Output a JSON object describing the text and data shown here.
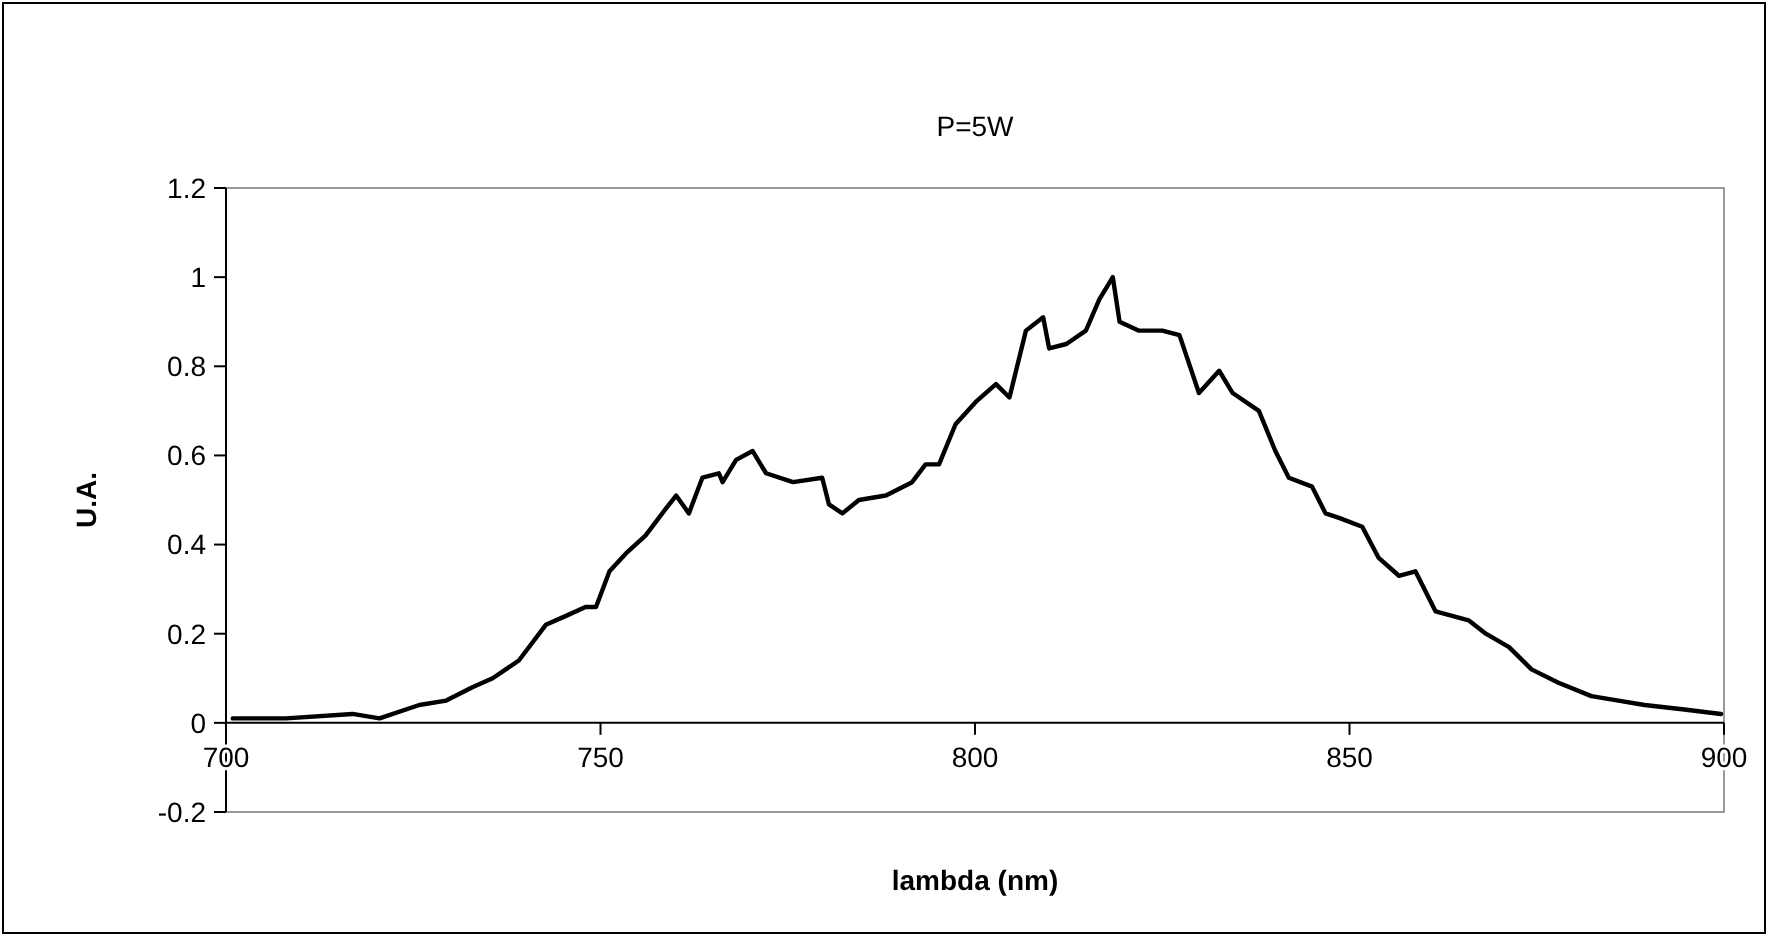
{
  "chart_data": {
    "type": "line",
    "title": "P=5W",
    "xlabel": "lambda (nm)",
    "ylabel": "U.A.",
    "x": [
      700.9,
      708,
      716.9,
      720.5,
      725.8,
      729.4,
      732.9,
      735.6,
      739.1,
      742.7,
      745.4,
      748,
      749.4,
      751.2,
      753.4,
      756,
      758.7,
      760.1,
      761.8,
      763.6,
      765.8,
      766.3,
      768.1,
      770.3,
      772.1,
      775.7,
      779.6,
      780.5,
      782.3,
      784.5,
      788.1,
      791.6,
      793.4,
      795.2,
      797.4,
      800.1,
      802.8,
      804.6,
      806.8,
      809.1,
      809.9,
      812.2,
      814.8,
      816.6,
      818.4,
      819.3,
      821.9,
      825,
      827.3,
      829.9,
      832.6,
      834.4,
      837.9,
      840.1,
      841.9,
      845,
      846.8,
      848.6,
      851.7,
      853.9,
      856.6,
      858.8,
      861.5,
      865.9,
      868.2,
      871.3,
      874.3,
      877.9,
      882.3,
      885.9,
      889.4,
      894.7,
      899.6
    ],
    "series": [
      {
        "color": "#000000",
        "values": [
          0.01,
          0.01,
          0.02,
          0.01,
          0.04,
          0.05,
          0.08,
          0.1,
          0.14,
          0.22,
          0.24,
          0.26,
          0.26,
          0.34,
          0.38,
          0.42,
          0.48,
          0.51,
          0.47,
          0.55,
          0.56,
          0.54,
          0.59,
          0.61,
          0.56,
          0.54,
          0.55,
          0.49,
          0.47,
          0.5,
          0.51,
          0.54,
          0.58,
          0.58,
          0.67,
          0.72,
          0.76,
          0.73,
          0.88,
          0.91,
          0.84,
          0.85,
          0.88,
          0.95,
          1.0,
          0.9,
          0.88,
          0.88,
          0.87,
          0.74,
          0.79,
          0.74,
          0.7,
          0.61,
          0.55,
          0.53,
          0.47,
          0.46,
          0.44,
          0.37,
          0.33,
          0.34,
          0.25,
          0.23,
          0.2,
          0.17,
          0.12,
          0.09,
          0.06,
          0.05,
          0.04,
          0.03,
          0.02
        ]
      }
    ],
    "xlim": [
      700,
      900
    ],
    "xticks": [
      700,
      750,
      800,
      850,
      900
    ],
    "ylim": [
      -0.2,
      1.2
    ],
    "yticks": [
      -0.2,
      0,
      0.2,
      0.4,
      0.6,
      0.8,
      1,
      1.2
    ],
    "grid": false,
    "marker": "none",
    "line_style": "solid"
  }
}
